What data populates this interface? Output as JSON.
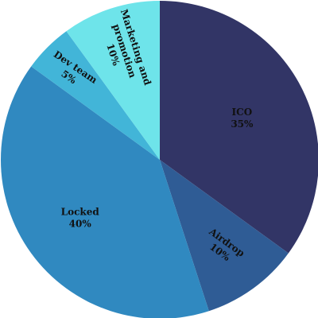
{
  "chart_data": {
    "type": "pie",
    "title": "",
    "slices": [
      {
        "label": "ICO",
        "value": 35,
        "display": "35%",
        "color": "#323566"
      },
      {
        "label": "Airdrop",
        "value": 10,
        "display": "10%",
        "color": "#2f5c95"
      },
      {
        "label": "Locked",
        "value": 40,
        "display": "40%",
        "color": "#3089c0"
      },
      {
        "label": "Dev team",
        "value": 5,
        "display": "5%",
        "color": "#42b5d8"
      },
      {
        "label": "Marketing and promotion",
        "value": 10,
        "display": "10%",
        "color": "#6ee4ea"
      }
    ],
    "start_angle_deg": 0,
    "direction": "clockwise",
    "legend": "none"
  }
}
